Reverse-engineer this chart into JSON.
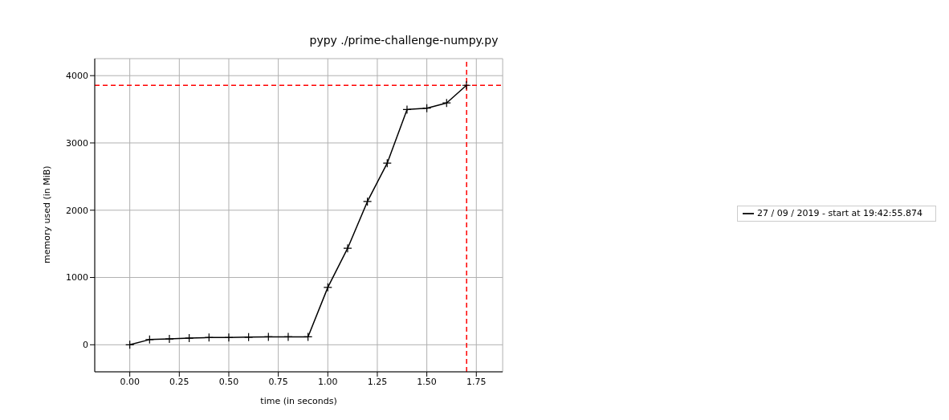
{
  "chart_data": {
    "type": "line",
    "title": "pypy ./prime-challenge-numpy.py",
    "xlabel": "time (in seconds)",
    "ylabel": "memory used (in MiB)",
    "x": [
      0,
      0.1,
      0.2,
      0.3,
      0.4,
      0.5,
      0.6,
      0.7,
      0.8,
      0.9,
      1.0,
      1.1,
      1.2,
      1.3,
      1.4,
      1.5,
      1.6,
      1.7
    ],
    "series": [
      {
        "name": "27 / 09 / 2019 - start at 19:42:55.874",
        "color": "#000000",
        "values": [
          0,
          77,
          87,
          98,
          108,
          108,
          113,
          118,
          118,
          118,
          853,
          1434,
          2129,
          2699,
          3496,
          3517,
          3594,
          3856
        ]
      }
    ],
    "xlim": [
      -0.177,
      1.883
    ],
    "xticks": [
      {
        "value": 0,
        "label": "0.00"
      },
      {
        "value": 0.25,
        "label": "0.25"
      },
      {
        "value": 0.5,
        "label": "0.50"
      },
      {
        "value": 0.75,
        "label": "0.75"
      },
      {
        "value": 1,
        "label": "1.00"
      },
      {
        "value": 1.25,
        "label": "1.25"
      },
      {
        "value": 1.5,
        "label": "1.50"
      },
      {
        "value": 1.75,
        "label": "1.75"
      }
    ],
    "ylim": [
      -402,
      4253
    ],
    "yticks": [
      0,
      1000,
      2000,
      3000,
      4000
    ],
    "ref_lines": [
      {
        "axis": "y",
        "value": 3856,
        "color": "#ff0000",
        "line_style": "dashed"
      },
      {
        "axis": "x",
        "value": 1.701,
        "color": "#ff0000",
        "line_style": "dashed"
      }
    ],
    "grid": true,
    "legend": "right",
    "marker": "cross",
    "line_style": "solid"
  }
}
